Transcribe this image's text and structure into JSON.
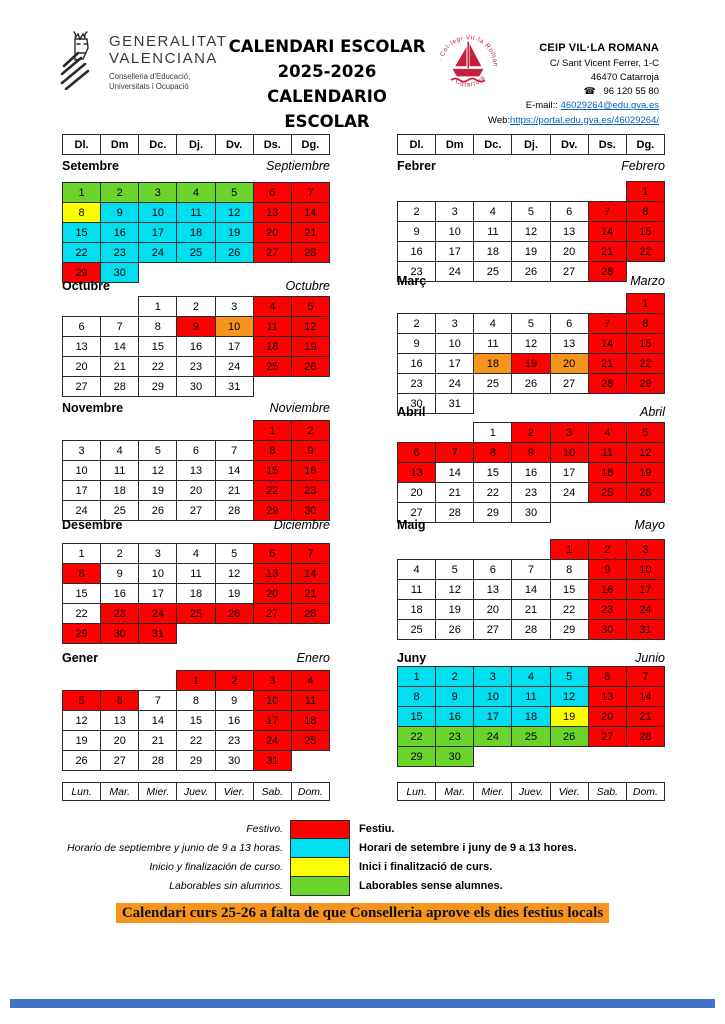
{
  "header": {
    "gv": {
      "name_line1": "GENERALITAT",
      "name_line2": "VALENCIANA",
      "dept_line1": "Conselleria d'Educació,",
      "dept_line2": "Universitats i Ocupació"
    },
    "title": {
      "line1": "CALENDARI ESCOLAR",
      "line2": "2025-2026",
      "line3": "CALENDARIO ESCOLAR"
    },
    "school": {
      "name": "CEIP VIL·LA ROMANA",
      "address": "C/ Sant Vicent Ferrer, 1-C",
      "city": "46470 Catarroja",
      "phone_icon": "☎",
      "phone": "96 120 55 80",
      "email_label": "E-mail::",
      "email": "46029264@edu.gva.es",
      "web_label": "Web:",
      "web": "https://portal.edu.gva.es/46029264/",
      "logo_text_top": "· Col·legi Vil·la Romana ·",
      "logo_text_bottom": "Catarroja"
    }
  },
  "day_headers_valencian": [
    "Dl.",
    "Dm",
    "Dc.",
    "Dj.",
    "Dv.",
    "Ds.",
    "Dg."
  ],
  "day_headers_spanish": [
    "Lun.",
    "Mar.",
    "Mier.",
    "Juev.",
    "Vier.",
    "Sab.",
    "Dom."
  ],
  "months_left": [
    {
      "name_va": "Setembre",
      "name_es": "Septiembre",
      "weeks": [
        [
          "1g",
          "2g",
          "3g",
          "4g",
          "5g",
          "6r",
          "7r"
        ],
        [
          "8y",
          "9c",
          "10c",
          "11c",
          "12c",
          "13r",
          "14r"
        ],
        [
          "15c",
          "16c",
          "17c",
          "18c",
          "19c",
          "20r",
          "21r"
        ],
        [
          "22c",
          "23c",
          "24c",
          "25c",
          "26c",
          "27r",
          "28r"
        ],
        [
          "29r",
          "30c",
          "",
          "",
          "",
          "",
          ""
        ]
      ]
    },
    {
      "name_va": "Octubre",
      "name_es": "Octubre",
      "weeks": [
        [
          "",
          "",
          "1w",
          "2w",
          "3w",
          "4r",
          "5r"
        ],
        [
          "6w",
          "7w",
          "8w",
          "9r",
          "10o",
          "11r",
          "12r"
        ],
        [
          "13w",
          "14w",
          "15w",
          "16w",
          "17w",
          "18r",
          "19r"
        ],
        [
          "20w",
          "21w",
          "22w",
          "23w",
          "24w",
          "25r",
          "26r"
        ],
        [
          "27w",
          "28w",
          "29w",
          "30w",
          "31w",
          "",
          ""
        ]
      ]
    },
    {
      "name_va": "Novembre",
      "name_es": "Noviembre",
      "weeks": [
        [
          "",
          "",
          "",
          "",
          "",
          "1r",
          "2r"
        ],
        [
          "3w",
          "4w",
          "5w",
          "6w",
          "7w",
          "8r",
          "9r"
        ],
        [
          "10w",
          "11w",
          "12w",
          "13w",
          "14w",
          "15r",
          "16r"
        ],
        [
          "17w",
          "18w",
          "19w",
          "20w",
          "21w",
          "22r",
          "23r"
        ],
        [
          "24w",
          "25w",
          "26w",
          "27w",
          "28w",
          "29r",
          "30r"
        ]
      ]
    },
    {
      "name_va": "Desembre",
      "name_es": "Diciembre",
      "weeks": [
        [
          "1w",
          "2w",
          "3w",
          "4w",
          "5w",
          "6r",
          "7r"
        ],
        [
          "8r",
          "9w",
          "10w",
          "11w",
          "12w",
          "13r",
          "14r"
        ],
        [
          "15w",
          "16w",
          "17w",
          "18w",
          "19w",
          "20r",
          "21r"
        ],
        [
          "22w",
          "23r",
          "24r",
          "25r",
          "26r",
          "27r",
          "28r"
        ],
        [
          "29r",
          "30r",
          "31r",
          "",
          "",
          "",
          ""
        ]
      ]
    },
    {
      "name_va": "Gener",
      "name_es": "Enero",
      "weeks": [
        [
          "",
          "",
          "",
          "1r",
          "2r",
          "3r",
          "4r"
        ],
        [
          "5r",
          "6r",
          "7w",
          "8w",
          "9w",
          "10r",
          "11r"
        ],
        [
          "12w",
          "13w",
          "14w",
          "15w",
          "16w",
          "17r",
          "18r"
        ],
        [
          "19w",
          "20w",
          "21w",
          "22w",
          "23w",
          "24r",
          "25r"
        ],
        [
          "26w",
          "27w",
          "28w",
          "29w",
          "30w",
          "31r",
          ""
        ]
      ]
    }
  ],
  "months_right": [
    {
      "name_va": "Febrer",
      "name_es": "Febrero",
      "weeks": [
        [
          "",
          "",
          "",
          "",
          "",
          "",
          "1r"
        ],
        [
          "2w",
          "3w",
          "4w",
          "5w",
          "6w",
          "7r",
          "8r"
        ],
        [
          "9w",
          "10w",
          "11w",
          "12w",
          "13w",
          "14r",
          "15r"
        ],
        [
          "16w",
          "17w",
          "18w",
          "19w",
          "20w",
          "21r",
          "22r"
        ],
        [
          "23w",
          "24w",
          "25w",
          "26w",
          "27w",
          "28r",
          ""
        ]
      ]
    },
    {
      "name_va": "Març",
      "name_es": "Marzo",
      "weeks": [
        [
          "",
          "",
          "",
          "",
          "",
          "",
          "1r"
        ],
        [
          "2w",
          "3w",
          "4w",
          "5w",
          "6w",
          "7r",
          "8r"
        ],
        [
          "9w",
          "10w",
          "11w",
          "12w",
          "13w",
          "14r",
          "15r"
        ],
        [
          "16w",
          "17w",
          "18o",
          "19r",
          "20o",
          "21r",
          "22r"
        ],
        [
          "23w",
          "24w",
          "25w",
          "26w",
          "27w",
          "28r",
          "29r"
        ],
        [
          "30w",
          "31w",
          "",
          "",
          "",
          "",
          ""
        ]
      ]
    },
    {
      "name_va": "Abril",
      "name_es": "Abril",
      "weeks": [
        [
          "",
          "",
          "1w",
          "2r",
          "3r",
          "4r",
          "5r"
        ],
        [
          "6r",
          "7r",
          "8r",
          "9r",
          "10r",
          "11r",
          "12r"
        ],
        [
          "13r",
          "14w",
          "15w",
          "16w",
          "17w",
          "18r",
          "19r"
        ],
        [
          "20w",
          "21w",
          "22w",
          "23w",
          "24w",
          "25r",
          "26r"
        ],
        [
          "27w",
          "28w",
          "29w",
          "30w",
          "",
          "",
          ""
        ]
      ]
    },
    {
      "name_va": "Maig",
      "name_es": "Mayo",
      "weeks": [
        [
          "",
          "",
          "",
          "",
          "1r",
          "2r",
          "3r"
        ],
        [
          "4w",
          "5w",
          "6w",
          "7w",
          "8w",
          "9r",
          "10r"
        ],
        [
          "11w",
          "12w",
          "13w",
          "14w",
          "15w",
          "16r",
          "17r"
        ],
        [
          "18w",
          "19w",
          "20w",
          "21w",
          "22w",
          "23r",
          "24r"
        ],
        [
          "25w",
          "26w",
          "27w",
          "28w",
          "29w",
          "30r",
          "31r"
        ]
      ]
    },
    {
      "name_va": "Juny",
      "name_es": "Junio",
      "weeks": [
        [
          "1c",
          "2c",
          "3c",
          "4c",
          "5c",
          "6r",
          "7r"
        ],
        [
          "8c",
          "9c",
          "10c",
          "11c",
          "12c",
          "13r",
          "14r"
        ],
        [
          "15c",
          "16c",
          "17c",
          "18c",
          "19y",
          "20r",
          "21r"
        ],
        [
          "22g",
          "23g",
          "24g",
          "25g",
          "26g",
          "27r",
          "28r"
        ],
        [
          "29g",
          "30g",
          "",
          "",
          "",
          "",
          ""
        ]
      ]
    }
  ],
  "legend": [
    {
      "es": "Festivo.",
      "va": "Festiu.",
      "color_key": "red"
    },
    {
      "es": "Horario de septiembre y junio de 9 a 13 horas.",
      "va": "Horari de setembre i juny de 9 a 13 hores.",
      "color_key": "cyan"
    },
    {
      "es": "Inicio y finalización de curso.",
      "va": "Inici i finalització de curs.",
      "color_key": "yellow"
    },
    {
      "es": "Laborables sin alumnos.",
      "va": "Laborables sense alumnes.",
      "color_key": "green"
    }
  ],
  "colors": {
    "red": "#FE0000",
    "cyan": "#00DFEF",
    "yellow": "#FFFF00",
    "green": "#6BD42A",
    "orange": "#F7941E",
    "white": "#FFFFFF",
    "link": "#0563C1",
    "notice_bg": "#F7941E",
    "footer_bar": "#4472C4"
  },
  "notice": "Calendari curs 25-26 a falta de que Conselleria aprove els dies festius locals"
}
